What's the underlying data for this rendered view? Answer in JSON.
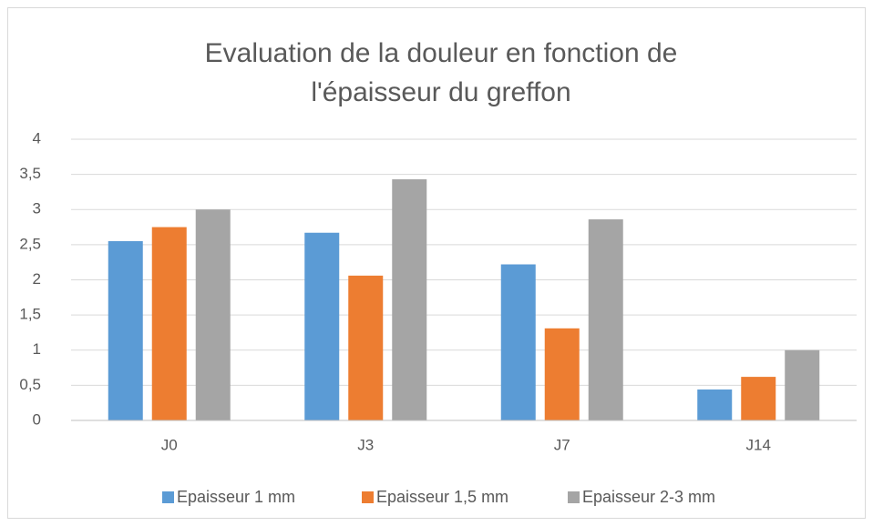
{
  "chart_data": {
    "type": "bar",
    "title": [
      "Evaluation de la douleur en fonction de",
      "l'épaisseur du greffon"
    ],
    "categories": [
      "J0",
      "J3",
      "J7",
      "J14"
    ],
    "series": [
      {
        "name": "Epaisseur 1 mm",
        "color": "#5b9bd5",
        "values": [
          2.55,
          2.67,
          2.22,
          0.44
        ]
      },
      {
        "name": "Epaisseur 1,5 mm",
        "color": "#ed7d31",
        "values": [
          2.75,
          2.06,
          1.31,
          0.62
        ]
      },
      {
        "name": "Epaisseur 2-3 mm",
        "color": "#a5a5a5",
        "values": [
          3.0,
          3.43,
          2.86,
          1.0
        ]
      }
    ],
    "ylim": [
      0,
      4
    ],
    "yticks": [
      0,
      {
        "value": 0.5,
        "label": "0,5"
      },
      1,
      {
        "value": 1.5,
        "label": "1,5"
      },
      2,
      {
        "value": 2.5,
        "label": "2,5"
      },
      3,
      {
        "value": 3.5,
        "label": "3,5"
      },
      4
    ],
    "grid": true,
    "legend": "bottom"
  }
}
